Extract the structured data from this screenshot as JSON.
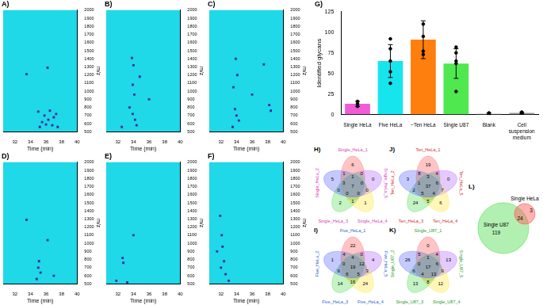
{
  "chart_data": [
    {
      "type": "scatter",
      "title": "A)",
      "x_label": "Time (min)",
      "y_label": "m/z",
      "color": "#3b2a9c",
      "marker": "square",
      "grid": false,
      "x": [
        35.2,
        35.5,
        35.8,
        36.0,
        36.3,
        36.5,
        36.8,
        37.0,
        37.3,
        35.0,
        36.2,
        37.5,
        33.5
      ],
      "y": [
        560,
        620,
        700,
        590,
        650,
        760,
        580,
        680,
        720,
        750,
        1290,
        560,
        1210
      ],
      "xlim": [
        30.5,
        40
      ],
      "xticks": [
        32,
        34,
        36,
        38,
        40
      ],
      "ylim": [
        500,
        2000
      ],
      "yticks": [
        500,
        600,
        700,
        800,
        900,
        1000,
        1100,
        1200,
        1300,
        1400,
        1500,
        1600,
        1700,
        1800,
        1900,
        2000
      ]
    },
    {
      "type": "scatter",
      "title": "B)",
      "x_label": "Time (min)",
      "y_label": "m/z",
      "color": "#3b2a9c",
      "marker": "square",
      "grid": false,
      "x": [
        33.8,
        34.0,
        33.9,
        34.1,
        33.5,
        33.9,
        34.2,
        34.4,
        32.5,
        36.0,
        34.8
      ],
      "y": [
        1410,
        1320,
        1080,
        960,
        800,
        720,
        650,
        580,
        560,
        900,
        1180
      ],
      "xlim": [
        30.5,
        40
      ],
      "xticks": [
        32,
        34,
        36,
        38,
        40
      ],
      "ylim": [
        500,
        2000
      ],
      "yticks": [
        500,
        600,
        700,
        800,
        900,
        1000,
        1100,
        1200,
        1300,
        1400,
        1500,
        1600,
        1700,
        1800,
        1900,
        2000
      ]
    },
    {
      "type": "scatter",
      "title": "C)",
      "x_label": "Time (min)",
      "y_label": "m/z",
      "color": "#3b2a9c",
      "marker": "square",
      "grid": false,
      "x": [
        33.9,
        34.1,
        33.6,
        33.8,
        34.0,
        34.3,
        33.5,
        38.2,
        38.4,
        36.0,
        37.5
      ],
      "y": [
        1400,
        1200,
        1050,
        780,
        700,
        640,
        560,
        830,
        760,
        960,
        1330
      ],
      "xlim": [
        30.5,
        40
      ],
      "xticks": [
        32,
        34,
        36,
        38,
        40
      ],
      "ylim": [
        500,
        2000
      ],
      "yticks": [
        500,
        600,
        700,
        800,
        900,
        1000,
        1100,
        1200,
        1300,
        1400,
        1500,
        1600,
        1700,
        1800,
        1900,
        2000
      ]
    },
    {
      "type": "scatter",
      "title": "D)",
      "x_label": "Time (min)",
      "y_label": "m/z",
      "color": "#3b2a9c",
      "marker": "square",
      "grid": false,
      "x": [
        35.1,
        35.0,
        35.3,
        34.8,
        36.2,
        33.5,
        37.0
      ],
      "y": [
        780,
        700,
        640,
        560,
        1040,
        1290,
        600
      ],
      "xlim": [
        30.5,
        40
      ],
      "xticks": [
        32,
        34,
        36,
        38,
        40
      ],
      "ylim": [
        500,
        2000
      ],
      "yticks": [
        500,
        600,
        700,
        800,
        900,
        1000,
        1100,
        1200,
        1300,
        1400,
        1500,
        1600,
        1700,
        1800,
        1900,
        2000
      ]
    },
    {
      "type": "scatter",
      "title": "E)",
      "x_label": "Time (min)",
      "y_label": "m/z",
      "color": "#3b2a9c",
      "marker": "square",
      "grid": false,
      "x": [
        32.6,
        32.7,
        33.2,
        31.8,
        34.0
      ],
      "y": [
        820,
        760,
        520,
        540,
        1100
      ],
      "xlim": [
        30.5,
        40
      ],
      "xticks": [
        32,
        34,
        36,
        38,
        40
      ],
      "ylim": [
        500,
        2000
      ],
      "yticks": [
        500,
        600,
        700,
        800,
        900,
        1000,
        1100,
        1200,
        1300,
        1400,
        1500,
        1600,
        1700,
        1800,
        1900,
        2000
      ]
    },
    {
      "type": "scatter",
      "title": "F)",
      "x_label": "Time (min)",
      "y_label": "m/z",
      "color": "#3b2a9c",
      "marker": "square",
      "grid": false,
      "x": [
        31.9,
        32.1,
        32.2,
        32.4,
        32.0,
        32.6,
        33.0,
        31.5
      ],
      "y": [
        1340,
        1100,
        960,
        780,
        700,
        620,
        540,
        900
      ],
      "xlim": [
        30.5,
        40
      ],
      "xticks": [
        32,
        34,
        36,
        38,
        40
      ],
      "ylim": [
        500,
        2000
      ],
      "yticks": [
        500,
        600,
        700,
        800,
        900,
        1000,
        1100,
        1200,
        1300,
        1400,
        1500,
        1600,
        1700,
        1800,
        1900,
        2000
      ]
    },
    {
      "type": "bar",
      "title": "G)",
      "y_label": "Identified glycans",
      "grid": false,
      "categories": [
        "Single HeLa",
        "Five HeLa",
        "~Ten HeLa",
        "Single U87",
        "Blank",
        "Cell suspension medium"
      ],
      "values": [
        13,
        65,
        91,
        62,
        1,
        2
      ],
      "errors": [
        3,
        20,
        23,
        18,
        1,
        1
      ],
      "points": [
        [
          10,
          13,
          16
        ],
        [
          38,
          52,
          65,
          80,
          92
        ],
        [
          73,
          77,
          95,
          110
        ],
        [
          28,
          62,
          65,
          75,
          82
        ],
        [
          0,
          1,
          2
        ],
        [
          1,
          2,
          3
        ]
      ],
      "colors": [
        "#f25bd6",
        "#17e5ee",
        "#ff7f0e",
        "#4fe84f",
        "#bbbbbb",
        "#999999"
      ],
      "ylim": [
        0,
        125
      ],
      "yticks": [
        0,
        25,
        50,
        75,
        100,
        125
      ]
    }
  ],
  "diagrams": {
    "venn5": [
      {
        "title": "H)",
        "label_color": "#d63cb8",
        "sets": [
          {
            "name": "Single_HeLa_1",
            "color": "#ff5555"
          },
          {
            "name": "Single_HeLa_5",
            "color": "#b266ff"
          },
          {
            "name": "Single_HeLa_4",
            "color": "#ffe633"
          },
          {
            "name": "Single_HeLa_3",
            "color": "#55dd55"
          },
          {
            "name": "Single_HeLa_2",
            "color": "#5566ff"
          }
        ],
        "outer": [
          6,
          0,
          1,
          2,
          5
        ],
        "pairs": [
          0,
          0,
          1,
          0,
          1
        ],
        "inner": [
          1,
          0,
          0,
          0,
          3
        ],
        "center": 7
      },
      {
        "title": "I)",
        "label_color": "#2f5fd0",
        "sets": [
          {
            "name": "Five_HeLa_1",
            "color": "#ff5555"
          },
          {
            "name": "Five_HeLa_5",
            "color": "#b266ff"
          },
          {
            "name": "Five_HeLa_4",
            "color": "#ffe633"
          },
          {
            "name": "Five_HeLa_3",
            "color": "#55dd55"
          },
          {
            "name": "Five_HeLa_2",
            "color": "#5566ff"
          }
        ],
        "outer": [
          22,
          4,
          24,
          14,
          1
        ],
        "pairs": [
          0,
          3,
          16,
          9,
          4
        ],
        "inner": [
          4,
          12,
          5,
          6,
          0
        ],
        "center": 19
      },
      {
        "title": "J)",
        "label_color": "#d42a2a",
        "sets": [
          {
            "name": "Ten_HeLa_1",
            "color": "#ff5555"
          },
          {
            "name": "Ten_HeLa_5",
            "color": "#b266ff"
          },
          {
            "name": "Ten_HeLa_4",
            "color": "#ffe633"
          },
          {
            "name": "Ten_HeLa_3",
            "color": "#55dd55"
          },
          {
            "name": "Ten_HeLa_2",
            "color": "#5566ff"
          }
        ],
        "outer": [
          19,
          0,
          6,
          24,
          3
        ],
        "pairs": [
          4,
          7,
          5,
          2,
          8
        ],
        "inner": [
          3,
          6,
          4,
          5,
          1
        ],
        "center": 37
      },
      {
        "title": "K)",
        "label_color": "#2a9a2a",
        "sets": [
          {
            "name": "Single_U87_1",
            "color": "#ff5555"
          },
          {
            "name": "Single_U87_5",
            "color": "#b266ff"
          },
          {
            "name": "Single_U87_4",
            "color": "#ffe633"
          },
          {
            "name": "Single_U87_3",
            "color": "#55dd55"
          },
          {
            "name": "Single_U87_2",
            "color": "#5566ff"
          }
        ],
        "outer": [
          0,
          13,
          12,
          13,
          26
        ],
        "pairs": [
          4,
          9,
          8,
          6,
          5
        ],
        "inner": [
          1,
          6,
          13,
          4,
          0
        ],
        "center": 17
      }
    ],
    "venn2": {
      "title": "L)",
      "sets": [
        {
          "name": "Single U87",
          "color": "#55dd55",
          "only": 119
        },
        {
          "name": "Single HeLa",
          "color": "#ff5555",
          "only": 3
        }
      ],
      "overlap": 24
    }
  }
}
